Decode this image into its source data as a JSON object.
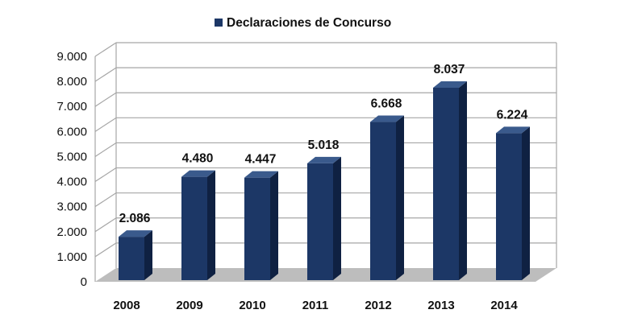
{
  "chart_data": {
    "type": "bar",
    "categories": [
      "2008",
      "2009",
      "2010",
      "2011",
      "2012",
      "2013",
      "2014"
    ],
    "values": [
      2086,
      4480,
      4447,
      5018,
      6668,
      8037,
      6224
    ],
    "value_labels": [
      "2.086",
      "4.480",
      "4.447",
      "5.018",
      "6.668",
      "8.037",
      "6.224"
    ],
    "series": [
      {
        "name": "Declaraciones de Concurso",
        "values": [
          2086,
          4480,
          4447,
          5018,
          6668,
          8037,
          6224
        ]
      }
    ],
    "y_ticks": [
      0,
      1000,
      2000,
      3000,
      4000,
      5000,
      6000,
      7000,
      8000,
      9000
    ],
    "y_tick_labels": [
      "0",
      "1.000",
      "2.000",
      "3.000",
      "4.000",
      "5.000",
      "6.000",
      "7.000",
      "8.000",
      "9.000"
    ],
    "ylim": [
      0,
      9000
    ],
    "title": "",
    "xlabel": "",
    "ylabel": "",
    "grid": true,
    "three_d": true,
    "legend_position": "top-center",
    "colors": {
      "bar_front": "#1c3766",
      "bar_side": "#0f2142",
      "bar_top": "#3a5a8c",
      "floor": "#bdbdbd",
      "grid": "#a6a6a6"
    }
  }
}
